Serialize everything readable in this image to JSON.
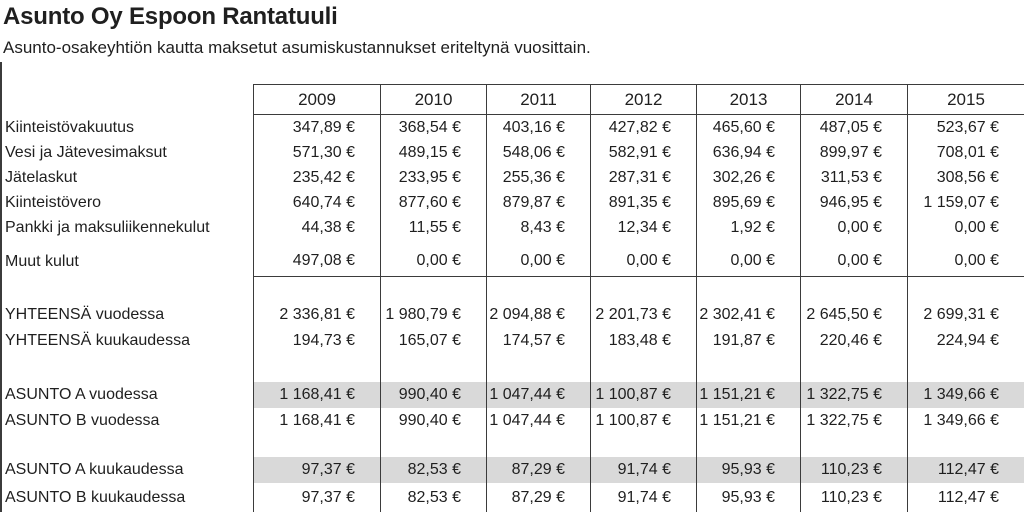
{
  "header": {
    "title": "Asunto Oy Espoon Rantatuuli",
    "subtitle": "Asunto-osakeyhtiön kautta maksetut asumiskustannukset eriteltynä vuosittain."
  },
  "table": {
    "years": [
      "2009",
      "2010",
      "2011",
      "2012",
      "2013",
      "2014",
      "2015"
    ],
    "rows": [
      {
        "label": "Kiinteistövakuutus",
        "values": [
          "347,89 €",
          "368,54 €",
          "403,16 €",
          "427,82 €",
          "465,60 €",
          "487,05 €",
          "523,67 €"
        ]
      },
      {
        "label": "Vesi ja Jätevesimaksut",
        "values": [
          "571,30 €",
          "489,15 €",
          "548,06 €",
          "582,91 €",
          "636,94 €",
          "899,97 €",
          "708,01 €"
        ]
      },
      {
        "label": "Jätelaskut",
        "values": [
          "235,42 €",
          "233,95 €",
          "255,36 €",
          "287,31 €",
          "302,26 €",
          "311,53 €",
          "308,56 €"
        ]
      },
      {
        "label": "Kiinteistövero",
        "values": [
          "640,74 €",
          "877,60 €",
          "879,87 €",
          "891,35 €",
          "895,69 €",
          "946,95 €",
          "1 159,07 €"
        ]
      },
      {
        "label": "Pankki ja maksuliikennekulut",
        "values": [
          "44,38 €",
          "11,55 €",
          "8,43 €",
          "12,34 €",
          "1,92 €",
          "0,00 €",
          "0,00 €"
        ]
      },
      {
        "label": "Muut kulut",
        "values": [
          "497,08 €",
          "0,00 €",
          "0,00 €",
          "0,00 €",
          "0,00 €",
          "0,00 €",
          "0,00 €"
        ]
      },
      {
        "label": "YHTEENSÄ vuodessa",
        "values": [
          "2 336,81 €",
          "1 980,79 €",
          "2 094,88 €",
          "2 201,73 €",
          "2 302,41 €",
          "2 645,50 €",
          "2 699,31 €"
        ]
      },
      {
        "label": "YHTEENSÄ kuukaudessa",
        "values": [
          "194,73 €",
          "165,07 €",
          "174,57 €",
          "183,48 €",
          "191,87 €",
          "220,46 €",
          "224,94 €"
        ]
      },
      {
        "label": "ASUNTO A vuodessa",
        "values": [
          "1 168,41 €",
          "990,40 €",
          "1 047,44 €",
          "1 100,87 €",
          "1 151,21 €",
          "1 322,75 €",
          "1 349,66 €"
        ],
        "highlighted": true
      },
      {
        "label": "ASUNTO B vuodessa",
        "values": [
          "1 168,41 €",
          "990,40 €",
          "1 047,44 €",
          "1 100,87 €",
          "1 151,21 €",
          "1 322,75 €",
          "1 349,66 €"
        ],
        "highlighted": false
      },
      {
        "label": "ASUNTO A kuukaudessa",
        "values": [
          "97,37 €",
          "82,53 €",
          "87,29 €",
          "91,74 €",
          "95,93 €",
          "110,23 €",
          "112,47 €"
        ],
        "highlighted": true
      },
      {
        "label": "ASUNTO B kuukaudessa",
        "values": [
          "97,37 €",
          "82,53 €",
          "87,29 €",
          "91,74 €",
          "95,93 €",
          "110,23 €",
          "112,47 €"
        ],
        "highlighted": false
      }
    ]
  },
  "colors": {
    "highlight": "#d9d9d9",
    "border": "#3b3b3b",
    "text": "#1f1f1f",
    "background": "#ffffff"
  }
}
